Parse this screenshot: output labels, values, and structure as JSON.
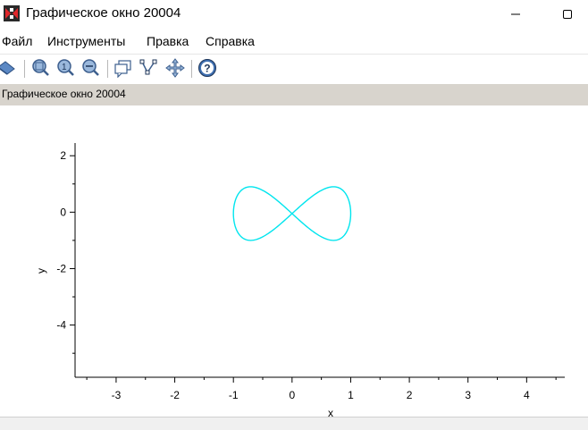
{
  "window": {
    "title": "Графическое окно 20004",
    "minimize_icon": "minimize-icon",
    "maximize_icon": "maximize-icon"
  },
  "menu": [
    {
      "label": "Файл"
    },
    {
      "label": "Инструменты"
    },
    {
      "label": "Правка"
    },
    {
      "label": "Справка"
    }
  ],
  "toolbar": {
    "icons": [
      "rotate-icon",
      "zoom-in-icon",
      "zoom-one-icon",
      "zoom-out-icon",
      "datatip-icon",
      "editor-icon",
      "pan-icon",
      "help-icon"
    ]
  },
  "infobar": {
    "text": "Графическое окно 20004"
  },
  "colors": {
    "curve": "#00e5ee",
    "axis": "#000000",
    "infobar_bg": "#d8d4cd"
  },
  "chart_data": {
    "type": "line",
    "xlabel": "x",
    "ylabel": "y",
    "xlim": [
      -3.7,
      4.65
    ],
    "ylim": [
      -5.85,
      2.45
    ],
    "xticks": [
      -3,
      -2,
      -1,
      0,
      1,
      2,
      3,
      4
    ],
    "yticks": [
      2,
      0,
      -2,
      -4
    ],
    "series": [
      {
        "curve": "parametric lemniscate-like loop",
        "x": [
          -0.5,
          0.0,
          0.5,
          1.0,
          0.5,
          0.0,
          -0.5,
          -1.0,
          -0.5
        ],
        "y": [
          0.87,
          0.0,
          -0.87,
          0.0,
          0.87,
          0.0,
          -0.87,
          0.0,
          0.87
        ]
      }
    ],
    "point_samples": [
      {
        "x": -1.0,
        "y": 0.9
      },
      {
        "x": 1.0,
        "y": 0.9
      },
      {
        "x": -0.4,
        "y": -1.0
      },
      {
        "x": 0.4,
        "y": -1.0
      },
      {
        "x": 0.0,
        "y": -0.4
      }
    ]
  }
}
